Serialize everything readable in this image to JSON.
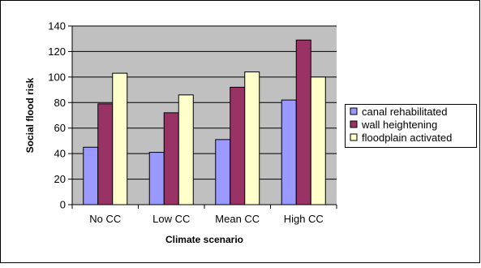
{
  "chart_data": {
    "type": "bar",
    "title": "",
    "xlabel": "Climate scenario",
    "ylabel": "Social flood risk",
    "categories": [
      "No CC",
      "Low CC",
      "Mean CC",
      "High CC"
    ],
    "yticks": [
      "0",
      "20",
      "40",
      "60",
      "80",
      "100",
      "120",
      "140"
    ],
    "ylim": [
      0,
      140
    ],
    "grid": true,
    "legend_position": "right",
    "plot_background": "#c0c0c0",
    "series": [
      {
        "name": "canal rehabilitated",
        "color": "#9999ff",
        "values": [
          45,
          41,
          51,
          82
        ]
      },
      {
        "name": "wall heightening",
        "color": "#993366",
        "values": [
          79,
          72,
          92,
          129
        ]
      },
      {
        "name": "floodplain activated",
        "color": "#ffffcc",
        "values": [
          103,
          86,
          104,
          100
        ]
      }
    ]
  }
}
